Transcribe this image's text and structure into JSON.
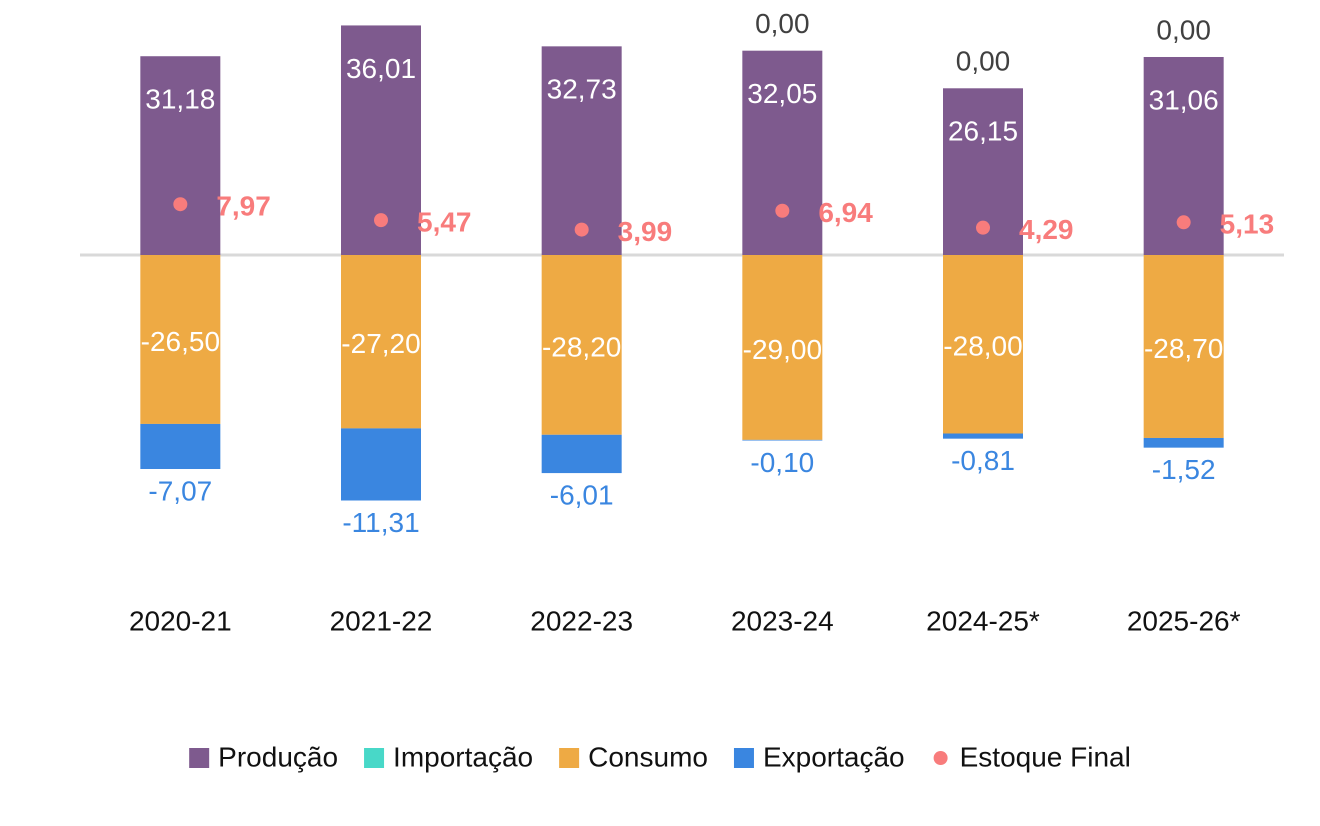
{
  "chart_data": {
    "type": "bar",
    "stacked": true,
    "categories": [
      "2020-21",
      "2021-22",
      "2022-23",
      "2023-24",
      "2024-25*",
      "2025-26*"
    ],
    "ylim": [
      -40,
      40
    ],
    "series": [
      {
        "name": "Produção",
        "color": "#7e5a8e",
        "values": [
          31.18,
          36.01,
          32.73,
          32.05,
          26.15,
          31.06
        ],
        "value_labels": [
          "31,18",
          "36,01",
          "32,73",
          "32,05",
          "26,15",
          "31,06"
        ]
      },
      {
        "name": "Importação",
        "color": "#48d8c8",
        "values": [
          null,
          null,
          null,
          0,
          0,
          0
        ],
        "value_labels": [
          null,
          null,
          null,
          "0,00",
          "0,00",
          "0,00"
        ]
      },
      {
        "name": "Consumo",
        "color": "#eeaa44",
        "values": [
          -26.5,
          -27.2,
          -28.2,
          -29.0,
          -28.0,
          -28.7
        ],
        "value_labels": [
          "-26,50",
          "-27,20",
          "-28,20",
          "-29,00",
          "-28,00",
          "-28,70"
        ]
      },
      {
        "name": "Exportação",
        "color": "#3a86e0",
        "values": [
          -7.07,
          -11.31,
          -6.01,
          -0.1,
          -0.81,
          -1.52
        ],
        "value_labels": [
          "-7,07",
          "-11,31",
          "-6,01",
          "-0,10",
          "-0,81",
          "-1,52"
        ]
      },
      {
        "name": "Estoque Final",
        "type": "dot",
        "color": "#f87c7c",
        "values": [
          7.97,
          5.47,
          3.99,
          6.94,
          4.29,
          5.13
        ],
        "value_labels": [
          "7,97",
          "5,47",
          "3,99",
          "6,94",
          "4,29",
          "5,13"
        ]
      }
    ]
  }
}
